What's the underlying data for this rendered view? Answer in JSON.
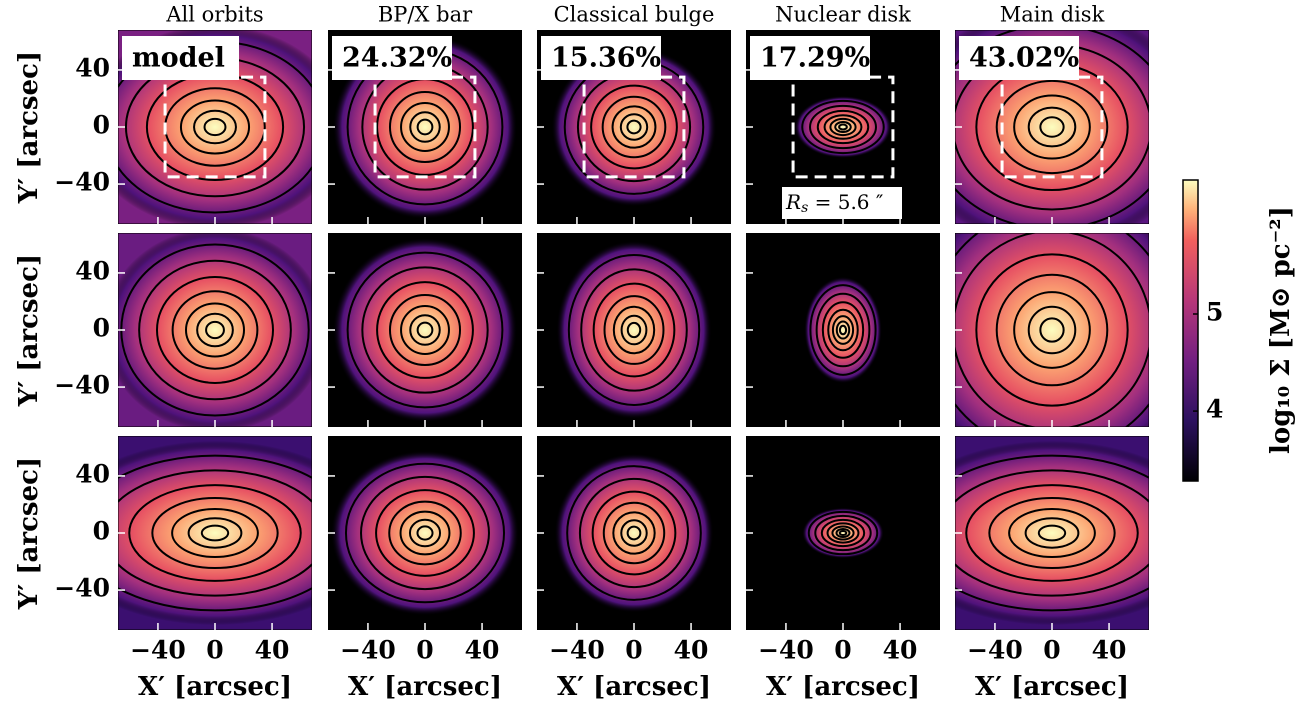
{
  "chart_data": {
    "type": "image-grid",
    "columns": [
      {
        "title": "All orbits",
        "label": "model"
      },
      {
        "title": "BP/X bar",
        "label": "24.32%"
      },
      {
        "title": "Classical bulge",
        "label": "15.36%"
      },
      {
        "title": "Nuclear disk",
        "label": "17.29%"
      },
      {
        "title": "Main disk",
        "label": "43.02%"
      }
    ],
    "annotation": [
      "R",
      "s",
      " = 5.6 ″"
    ],
    "xlabel": "X′ [arcsec]",
    "ylabel": "Y′ [arcsec]",
    "xlim": [
      -68,
      68
    ],
    "ylim": [
      -68,
      68
    ],
    "xticks": [
      {
        "value": -40,
        "label": "−40"
      },
      0,
      40
    ],
    "yticks": [
      {
        "value": -40,
        "label": "−40"
      },
      0,
      40
    ],
    "region": {
      "xlim": [
        -35,
        35
      ],
      "ylim": [
        -35,
        35
      ]
    },
    "colorbar": {
      "label": "log₁₀ Σ [M⊙ pc⁻²]",
      "lim": [
        3.28,
        6.38
      ],
      "ticks": [
        4,
        5
      ],
      "colormap": "magma"
    }
  }
}
